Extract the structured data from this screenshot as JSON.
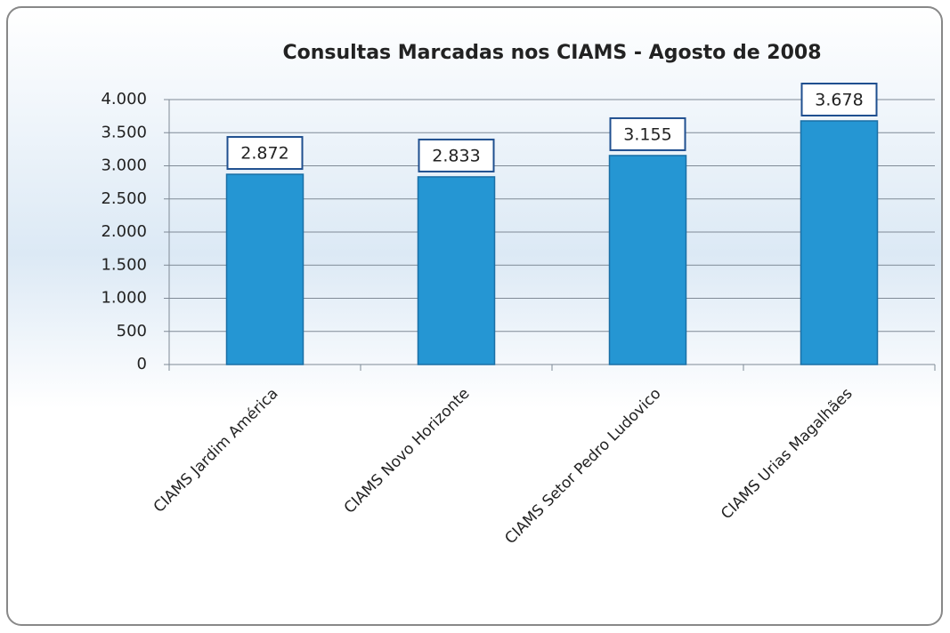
{
  "chart_data": {
    "type": "bar",
    "title": "Consultas Marcadas nos CIAMS - Agosto de 2008",
    "categories": [
      "CIAMS Jardim América",
      "CIAMS Novo Horizonte",
      "CIAMS Setor Pedro Ludovico",
      "CIAMS Urias Magalhães"
    ],
    "values": [
      2872,
      2833,
      3155,
      3678
    ],
    "value_labels": [
      "2.872",
      "2.833",
      "3.155",
      "3.678"
    ],
    "color": "#2596d3",
    "ylim": [
      0,
      4000
    ],
    "yticks": [
      0,
      500,
      {
        "value": 1000,
        "label": "1.000"
      },
      {
        "value": 1500,
        "label": "1.500"
      },
      {
        "value": 2000,
        "label": "2.000"
      },
      {
        "value": 2500,
        "label": "2.500"
      },
      {
        "value": 3000,
        "label": "3.000"
      },
      {
        "value": 3500,
        "label": "3.500"
      },
      {
        "value": 4000,
        "label": "4.000"
      }
    ],
    "grid": true
  }
}
